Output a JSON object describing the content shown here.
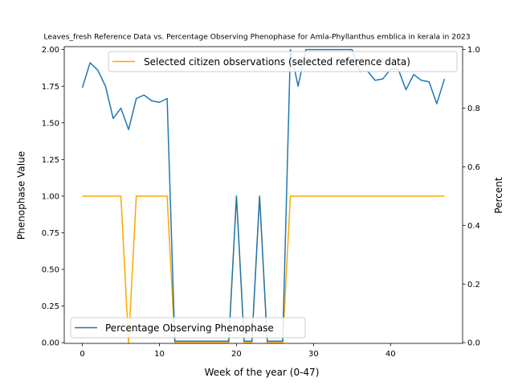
{
  "chart_data": {
    "type": "line",
    "title": "Leaves_fresh Reference Data vs. Percentage Observing Phenophase for Amla-Phyllanthus emblica in kerala in 2023",
    "xlabel": "Week of the year (0-47)",
    "ylabel_left": "Phenophase Value",
    "ylabel_right": "Percent",
    "xlim": [
      -2.35,
      49.35
    ],
    "ylim_left": [
      -0.005,
      2.02
    ],
    "ylim_right": [
      -0.0025,
      1.01
    ],
    "x_ticks": [
      0,
      10,
      20,
      30,
      40
    ],
    "y_ticks_left": [
      "0.00",
      "0.25",
      "0.50",
      "0.75",
      "1.00",
      "1.25",
      "1.50",
      "1.75",
      "2.00"
    ],
    "y_ticks_right": [
      "0.0",
      "0.2",
      "0.4",
      "0.6",
      "0.8",
      "1.0"
    ],
    "series": [
      {
        "name": "Selected citizen observations (selected reference data)",
        "axis": "left",
        "color": "#ffa500",
        "legend_position": "upper right",
        "x": [
          0,
          1,
          2,
          3,
          4,
          5,
          6,
          7,
          8,
          9,
          10,
          11,
          12,
          13,
          14,
          15,
          16,
          17,
          18,
          19,
          20,
          21,
          22,
          23,
          24,
          25,
          26,
          27,
          28,
          29,
          30,
          31,
          32,
          33,
          34,
          35,
          36,
          37,
          38,
          39,
          40,
          41,
          42,
          43,
          44,
          45,
          46,
          47
        ],
        "values": [
          1,
          1,
          1,
          1,
          1,
          1,
          0,
          1,
          1,
          1,
          1,
          1,
          0,
          0,
          0,
          0,
          0,
          0,
          0,
          0,
          1,
          0,
          0,
          1,
          0,
          0,
          0,
          1,
          1,
          1,
          1,
          1,
          1,
          1,
          1,
          1,
          1,
          1,
          1,
          1,
          1,
          1,
          1,
          1,
          1,
          1,
          1,
          1
        ]
      },
      {
        "name": "Percentage Observing Phenophase",
        "axis": "right",
        "color": "#1f77b4",
        "legend_position": "lower left",
        "x": [
          0,
          1,
          2,
          3,
          4,
          5,
          6,
          7,
          8,
          9,
          10,
          11,
          12,
          13,
          14,
          15,
          16,
          17,
          18,
          19,
          20,
          21,
          22,
          23,
          24,
          25,
          26,
          27,
          28,
          29,
          30,
          31,
          32,
          33,
          34,
          35,
          36,
          37,
          38,
          39,
          40,
          41,
          42,
          43,
          44,
          45,
          46,
          47
        ],
        "values": [
          0.87,
          0.955,
          0.93,
          0.875,
          0.765,
          0.8,
          0.727,
          0.833,
          0.845,
          0.825,
          0.82,
          0.833,
          0.005,
          0.005,
          0.005,
          0.005,
          0.005,
          0.005,
          0.005,
          0.005,
          0.5,
          0.005,
          0.005,
          0.5,
          0.005,
          0.005,
          0.005,
          1.0,
          0.875,
          1.0,
          1.0,
          1.0,
          1.0,
          1.0,
          1.0,
          1.0,
          0.925,
          0.927,
          0.895,
          0.9,
          0.933,
          0.933,
          0.863,
          0.915,
          0.895,
          0.89,
          0.815,
          0.9
        ]
      }
    ]
  }
}
